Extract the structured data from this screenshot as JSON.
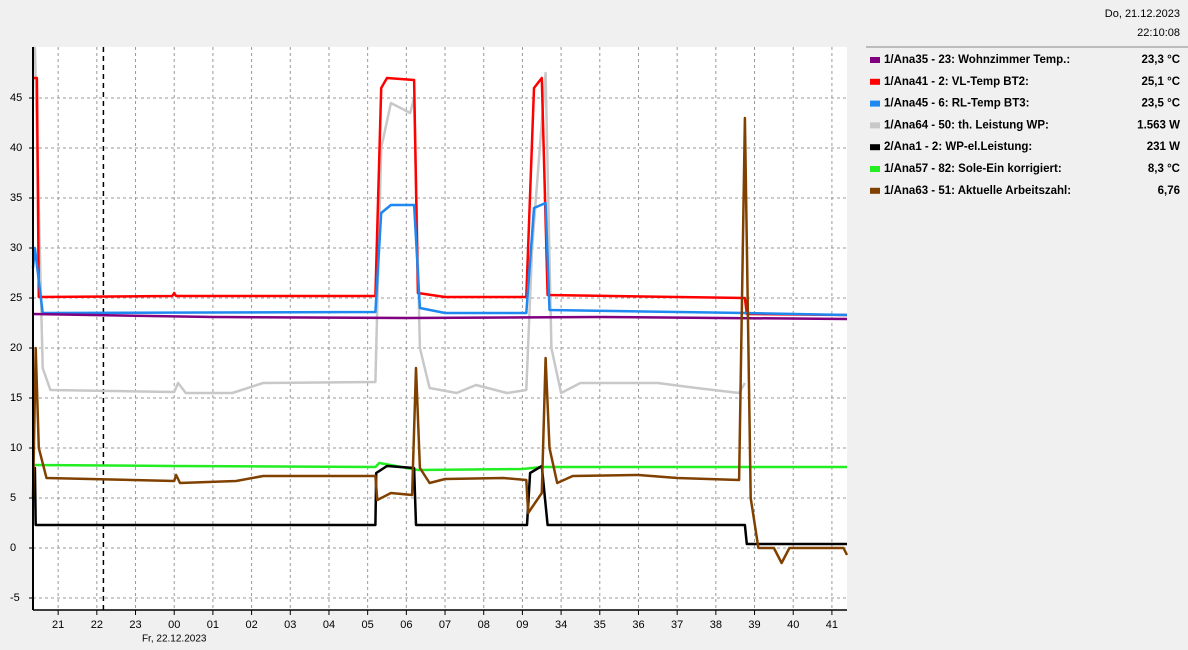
{
  "chart_data": {
    "type": "line",
    "header_date": "Do, 21.12.2023",
    "header_time": "22:10:08",
    "date_label": "Fr, 22.12.2023",
    "xlim": [
      20.35,
      41.39
    ],
    "ylim": [
      -6.2,
      50.1
    ],
    "xticks": [
      21,
      22,
      23,
      {
        "value": 24,
        "label": "00"
      },
      {
        "value": 25,
        "label": "01"
      },
      {
        "value": 26,
        "label": "02"
      },
      {
        "value": 27,
        "label": "03"
      },
      {
        "value": 28,
        "label": "04"
      },
      {
        "value": 29,
        "label": "05"
      },
      {
        "value": 30,
        "label": "06"
      },
      {
        "value": 31,
        "label": "07"
      },
      {
        "value": 32,
        "label": "08"
      },
      {
        "value": 33,
        "label": "09"
      },
      34,
      35,
      36,
      37,
      38,
      39,
      40,
      41
    ],
    "yticks": [
      -5,
      0,
      5,
      10,
      15,
      20,
      25,
      30,
      35,
      40,
      45
    ],
    "grid": true,
    "cursor_x": 22.17,
    "series": [
      {
        "name": "1/Ana35 - 23: Wohnzimmer Temp.:",
        "reading": "23,3 °C",
        "color": "#800080",
        "x": [
          20.35,
          25,
          30,
          35,
          41.39
        ],
        "values": [
          23.4,
          23.1,
          23.0,
          23.1,
          22.9
        ]
      },
      {
        "name": "1/Ana41 - 2: VL-Temp BT2:",
        "reading": "25,1 °C",
        "color": "#ff0000",
        "x": [
          20.35,
          20.45,
          20.5,
          23.95,
          24.0,
          24.05,
          29.2,
          29.35,
          29.5,
          30.2,
          30.3,
          31,
          33.1,
          33.3,
          33.5,
          33.65,
          38.75,
          38.8,
          41.39
        ],
        "values": [
          47,
          47,
          25.1,
          25.2,
          25.5,
          25.2,
          25.2,
          46,
          47,
          46.8,
          25.5,
          25.1,
          25.1,
          46,
          47,
          25.3,
          25.0,
          23.4,
          23.3
        ]
      },
      {
        "name": "1/Ana45 - 6: RL-Temp BT3:",
        "reading": "23,5 °C",
        "color": "#1e88f0",
        "x": [
          20.35,
          20.4,
          20.6,
          29.2,
          29.35,
          29.6,
          30.2,
          30.35,
          31,
          33.1,
          33.3,
          33.6,
          33.7,
          38.75,
          41.39
        ],
        "values": [
          28,
          30,
          23.5,
          23.6,
          33.5,
          34.3,
          34.3,
          24,
          23.5,
          23.5,
          34,
          34.5,
          23.8,
          23.5,
          23.3
        ]
      },
      {
        "name": "1/Ana64 - 50: th. Leistung WP:",
        "reading": "1.563 W",
        "color": "#c8c8c8",
        "x": [
          20.35,
          20.4,
          20.6,
          20.8,
          24.0,
          24.1,
          24.3,
          25.5,
          26.3,
          29.2,
          29.35,
          29.6,
          30.1,
          30.2,
          30.35,
          30.6,
          31.3,
          31.8,
          32.6,
          33.1,
          33.25,
          33.6,
          33.75,
          34.0,
          34.5,
          36.5,
          37.5,
          38.6,
          38.75
        ],
        "values": [
          50,
          50,
          18,
          15.8,
          15.6,
          16.5,
          15.5,
          15.5,
          16.5,
          16.6,
          40,
          44.5,
          43.5,
          45,
          20,
          16,
          15.5,
          16.3,
          15.5,
          15.8,
          30,
          47.5,
          20,
          15.5,
          16.5,
          16.5,
          16,
          15.5,
          16.5
        ]
      },
      {
        "name": "2/Ana1 - 2: WP-el.Leistung:",
        "reading": "231 W",
        "color": "#000000",
        "x": [
          20.35,
          20.4,
          20.42,
          29.2,
          29.22,
          29.5,
          30.2,
          30.25,
          33.12,
          33.2,
          33.5,
          33.65,
          38.75,
          38.8,
          41.39
        ],
        "values": [
          8,
          8,
          2.3,
          2.3,
          7.5,
          8.2,
          8.0,
          2.3,
          2.3,
          7.5,
          8.2,
          2.3,
          2.3,
          0.4,
          0.4
        ]
      },
      {
        "name": "1/Ana57 - 82: Sole-Ein korrigiert:",
        "reading": "8,3 °C",
        "color": "#22ee22",
        "x": [
          20.35,
          24,
          29.2,
          29.3,
          30.3,
          33.0,
          33.5,
          41.39
        ],
        "values": [
          8.3,
          8.2,
          8.1,
          8.5,
          7.8,
          7.9,
          8.1,
          8.1
        ]
      },
      {
        "name": "1/Ana63 - 51: Aktuelle Arbeitszahl:",
        "reading": "6,76",
        "color": "#804000",
        "x": [
          20.35,
          20.42,
          20.5,
          20.7,
          24.0,
          24.05,
          24.15,
          25.6,
          26.3,
          29.2,
          29.25,
          29.6,
          30.15,
          30.25,
          30.35,
          30.6,
          31,
          32.5,
          33.1,
          33.15,
          33.5,
          33.6,
          33.7,
          33.9,
          34.3,
          36,
          37,
          38.6,
          38.75,
          38.9,
          39.1,
          39.5,
          39.7,
          39.9,
          41.3,
          41.39
        ],
        "values": [
          5,
          20,
          10,
          7,
          6.7,
          7.3,
          6.5,
          6.7,
          7.2,
          7.2,
          4.8,
          5.5,
          5.3,
          18,
          8,
          6.5,
          6.9,
          7,
          6.8,
          3.5,
          5.5,
          19,
          10,
          6.5,
          7.2,
          7.3,
          7,
          6.8,
          43,
          5,
          0,
          0,
          -1.5,
          0,
          0,
          -0.7
        ]
      }
    ]
  }
}
